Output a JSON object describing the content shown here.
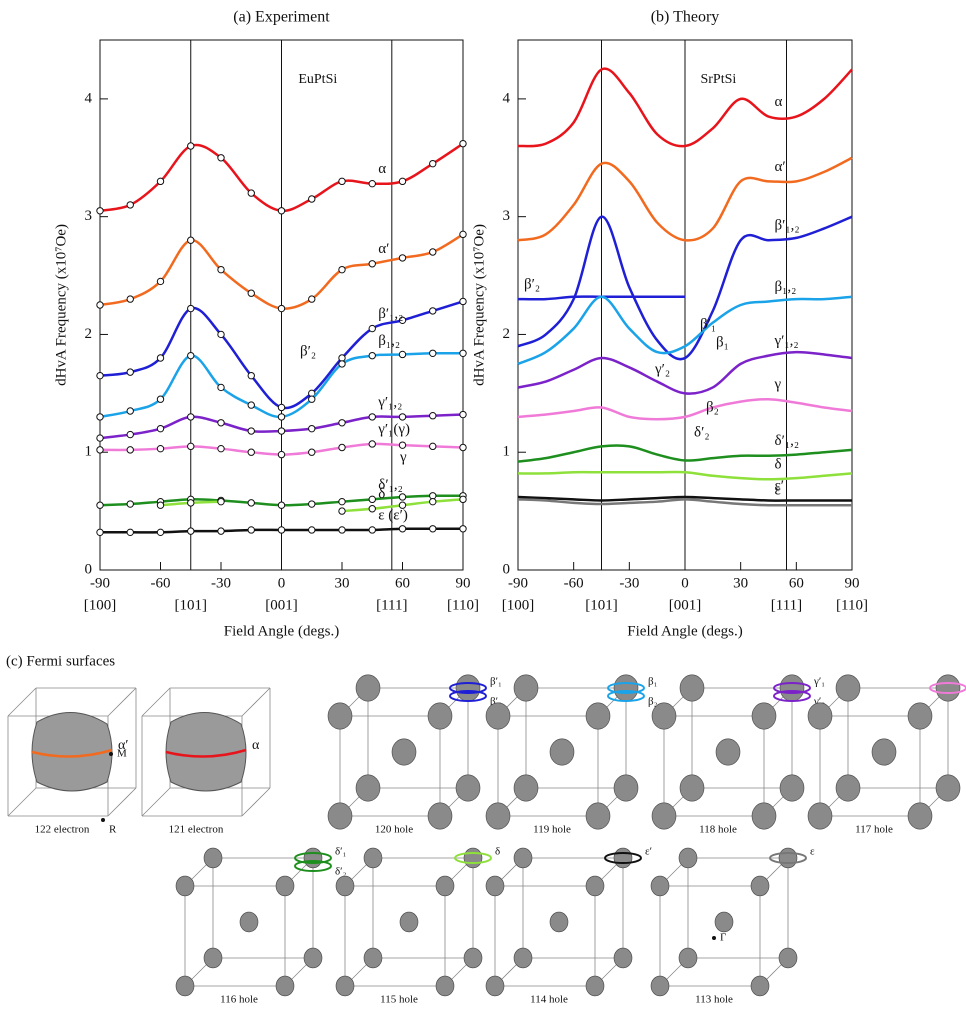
{
  "chart_data": [
    {
      "type": "line",
      "title": "(a) Experiment",
      "annotation": "EuPtSi",
      "markers": "open-circle",
      "x_label": "Field Angle (degs.)",
      "y_label": "dHvA Frequency (x10⁷Oe)",
      "x": [
        -90,
        -75,
        -60,
        -45,
        -30,
        -15,
        0,
        15,
        30,
        45,
        60,
        75,
        90
      ],
      "xlim": [
        -90,
        90
      ],
      "xticks": [
        -90,
        -60,
        -30,
        0,
        30,
        60,
        90
      ],
      "direction_ticks": [
        {
          "value": -90,
          "label": "[100]"
        },
        {
          "value": -45,
          "label": "[101]"
        },
        {
          "value": 0,
          "label": "[001]"
        },
        {
          "value": 54.7,
          "label": "[111]"
        },
        {
          "value": 90,
          "label": "[110]"
        }
      ],
      "ylim": [
        0,
        4.5
      ],
      "yticks": [
        0,
        1,
        2,
        3,
        4
      ],
      "annotations": [
        "β′₂",
        "γ"
      ],
      "series": [
        {
          "name": "α",
          "color": "#e8141c",
          "values": [
            3.05,
            3.1,
            3.3,
            3.6,
            3.5,
            3.2,
            3.05,
            3.15,
            3.3,
            3.28,
            3.3,
            3.45,
            3.62
          ]
        },
        {
          "name": "α′",
          "color": "#f26a1f",
          "values": [
            2.25,
            2.3,
            2.45,
            2.8,
            2.55,
            2.35,
            2.22,
            2.3,
            2.55,
            2.6,
            2.65,
            2.7,
            2.85
          ]
        },
        {
          "name": "β′₁,₂",
          "color": "#1f1fd6",
          "values": [
            1.65,
            1.68,
            1.8,
            2.22,
            2.0,
            1.65,
            1.38,
            1.5,
            1.8,
            2.05,
            2.12,
            2.2,
            2.28
          ]
        },
        {
          "name": "β₁,₂",
          "color": "#1aa3e8",
          "values": [
            1.3,
            1.35,
            1.45,
            1.82,
            1.55,
            1.4,
            1.3,
            1.45,
            1.75,
            1.82,
            1.83,
            1.84,
            1.84
          ]
        },
        {
          "name": "γ′₁,₂",
          "color": "#7b22c9",
          "values": [
            1.12,
            1.15,
            1.2,
            1.3,
            1.25,
            1.18,
            1.18,
            1.2,
            1.25,
            1.3,
            1.3,
            1.31,
            1.32
          ]
        },
        {
          "name": "γ′₁(γ)",
          "color": "#f07ad8",
          "values": [
            1.02,
            1.02,
            1.03,
            1.05,
            1.03,
            1.0,
            0.98,
            1.0,
            1.04,
            1.07,
            1.06,
            1.05,
            1.04
          ]
        },
        {
          "name": "δ′₁,₂",
          "color": "#1e8f1e",
          "values": [
            0.55,
            0.56,
            0.58,
            0.6,
            0.59,
            0.57,
            0.55,
            0.56,
            0.58,
            0.6,
            0.62,
            0.63,
            0.63
          ]
        },
        {
          "name": "δ",
          "color": "#8ee03a",
          "values": [
            null,
            null,
            0.55,
            0.57,
            0.58,
            null,
            null,
            null,
            0.5,
            0.52,
            0.55,
            0.58,
            0.6
          ]
        },
        {
          "name": "ε (ε′)",
          "color": "#111111",
          "values": [
            0.32,
            0.32,
            0.32,
            0.33,
            0.33,
            0.34,
            0.34,
            0.34,
            0.34,
            0.34,
            0.35,
            0.35,
            0.35
          ]
        }
      ]
    },
    {
      "type": "line",
      "title": "(b) Theory",
      "annotation": "SrPtSi",
      "x_label": "Field Angle (degs.)",
      "y_label": "dHvA Frequency (x10⁷Oe)",
      "x": [
        -90,
        -75,
        -60,
        -45,
        -30,
        -15,
        0,
        15,
        30,
        45,
        60,
        75,
        90
      ],
      "xlim": [
        -90,
        90
      ],
      "xticks": [
        -90,
        -60,
        -30,
        0,
        30,
        60,
        90
      ],
      "direction_ticks": [
        {
          "value": -90,
          "label": "[100]"
        },
        {
          "value": -45,
          "label": "[101]"
        },
        {
          "value": 0,
          "label": "[001]"
        },
        {
          "value": 54.7,
          "label": "[111]"
        },
        {
          "value": 90,
          "label": "[110]"
        }
      ],
      "ylim": [
        0,
        4.5
      ],
      "yticks": [
        0,
        1,
        2,
        3,
        4
      ],
      "annotations": [
        "β′₁",
        "β₁",
        "γ′₂",
        "β₂",
        "δ′₂"
      ],
      "series": [
        {
          "name": "α",
          "color": "#e8141c",
          "values": [
            3.6,
            3.62,
            3.8,
            4.25,
            4.05,
            3.7,
            3.6,
            3.75,
            4.0,
            3.85,
            3.85,
            4.0,
            4.25
          ]
        },
        {
          "name": "α′",
          "color": "#f26a1f",
          "values": [
            2.8,
            2.85,
            3.1,
            3.45,
            3.3,
            2.95,
            2.8,
            2.9,
            3.3,
            3.3,
            3.3,
            3.38,
            3.5
          ]
        },
        {
          "name": "β′₁,₂",
          "color": "#1f1fd6",
          "values": [
            1.9,
            2.0,
            2.3,
            3.0,
            2.4,
            1.95,
            1.8,
            2.2,
            2.8,
            2.8,
            2.82,
            2.9,
            3.0
          ]
        },
        {
          "name": "β′₂",
          "color": "#1f1fd6",
          "values": [
            2.3,
            2.3,
            2.32,
            2.32,
            2.32,
            2.32,
            2.32,
            null,
            null,
            null,
            null,
            null,
            null
          ]
        },
        {
          "name": "β₁,₂",
          "color": "#1aa3e8",
          "values": [
            1.75,
            1.85,
            2.05,
            2.32,
            2.05,
            1.85,
            1.9,
            2.1,
            2.25,
            2.28,
            2.3,
            2.3,
            2.32
          ]
        },
        {
          "name": "γ′₁,₂",
          "color": "#7b22c9",
          "values": [
            1.55,
            1.6,
            1.7,
            1.8,
            1.72,
            1.6,
            1.5,
            1.55,
            1.75,
            1.82,
            1.85,
            1.83,
            1.8
          ]
        },
        {
          "name": "γ",
          "color": "#f07ad8",
          "values": [
            1.3,
            1.32,
            1.35,
            1.38,
            1.3,
            1.28,
            1.3,
            1.38,
            1.43,
            1.45,
            1.42,
            1.38,
            1.35
          ]
        },
        {
          "name": "δ′₁,₂",
          "color": "#1e8f1e",
          "values": [
            0.92,
            0.95,
            1.0,
            1.05,
            1.05,
            0.98,
            0.93,
            0.95,
            0.97,
            0.97,
            0.98,
            1.0,
            1.02
          ]
        },
        {
          "name": "δ",
          "color": "#8ee03a",
          "values": [
            0.82,
            0.82,
            0.83,
            0.83,
            0.83,
            0.83,
            0.83,
            0.8,
            0.78,
            0.77,
            0.78,
            0.8,
            0.82
          ]
        },
        {
          "name": "ε′",
          "color": "#111111",
          "values": [
            0.62,
            0.61,
            0.6,
            0.59,
            0.6,
            0.61,
            0.62,
            0.61,
            0.6,
            0.59,
            0.59,
            0.59,
            0.59
          ]
        },
        {
          "name": "ε",
          "color": "#777777",
          "values": [
            0.6,
            0.59,
            0.57,
            0.56,
            0.57,
            0.58,
            0.6,
            0.58,
            0.56,
            0.55,
            0.55,
            0.55,
            0.55
          ]
        }
      ]
    }
  ],
  "fermi_surfaces": {
    "title": "(c) Fermi surfaces",
    "panels": [
      {
        "label": "122 electron",
        "kind": "electron",
        "orbits": [
          {
            "name": "α′",
            "color": "#f26a1f"
          }
        ],
        "points": [
          "M",
          "R"
        ]
      },
      {
        "label": "121 electron",
        "kind": "electron",
        "orbits": [
          {
            "name": "α",
            "color": "#e8141c"
          }
        ]
      },
      {
        "label": "120 hole",
        "kind": "hole",
        "orbits": [
          {
            "name": "β′₁",
            "color": "#1f1fd6"
          },
          {
            "name": "β′₂",
            "color": "#1f1fd6"
          }
        ]
      },
      {
        "label": "119 hole",
        "kind": "hole",
        "orbits": [
          {
            "name": "β₁",
            "color": "#1aa3e8"
          },
          {
            "name": "β₂",
            "color": "#1aa3e8"
          }
        ]
      },
      {
        "label": "118 hole",
        "kind": "hole",
        "orbits": [
          {
            "name": "γ′₁",
            "color": "#7b22c9"
          },
          {
            "name": "γ′₂",
            "color": "#7b22c9"
          }
        ]
      },
      {
        "label": "117 hole",
        "kind": "hole",
        "orbits": [
          {
            "name": "γ",
            "color": "#f07ad8"
          }
        ]
      },
      {
        "label": "116 hole",
        "kind": "small",
        "orbits": [
          {
            "name": "δ′₁",
            "color": "#1e8f1e"
          },
          {
            "name": "δ′₂",
            "color": "#1e8f1e"
          }
        ]
      },
      {
        "label": "115 hole",
        "kind": "small",
        "orbits": [
          {
            "name": "δ",
            "color": "#8ee03a"
          }
        ]
      },
      {
        "label": "114 hole",
        "kind": "small",
        "orbits": [
          {
            "name": "ε′",
            "color": "#111111"
          }
        ]
      },
      {
        "label": "113 hole",
        "kind": "small",
        "orbits": [
          {
            "name": "ε",
            "color": "#777777"
          }
        ],
        "points": [
          "Γ"
        ]
      }
    ]
  }
}
